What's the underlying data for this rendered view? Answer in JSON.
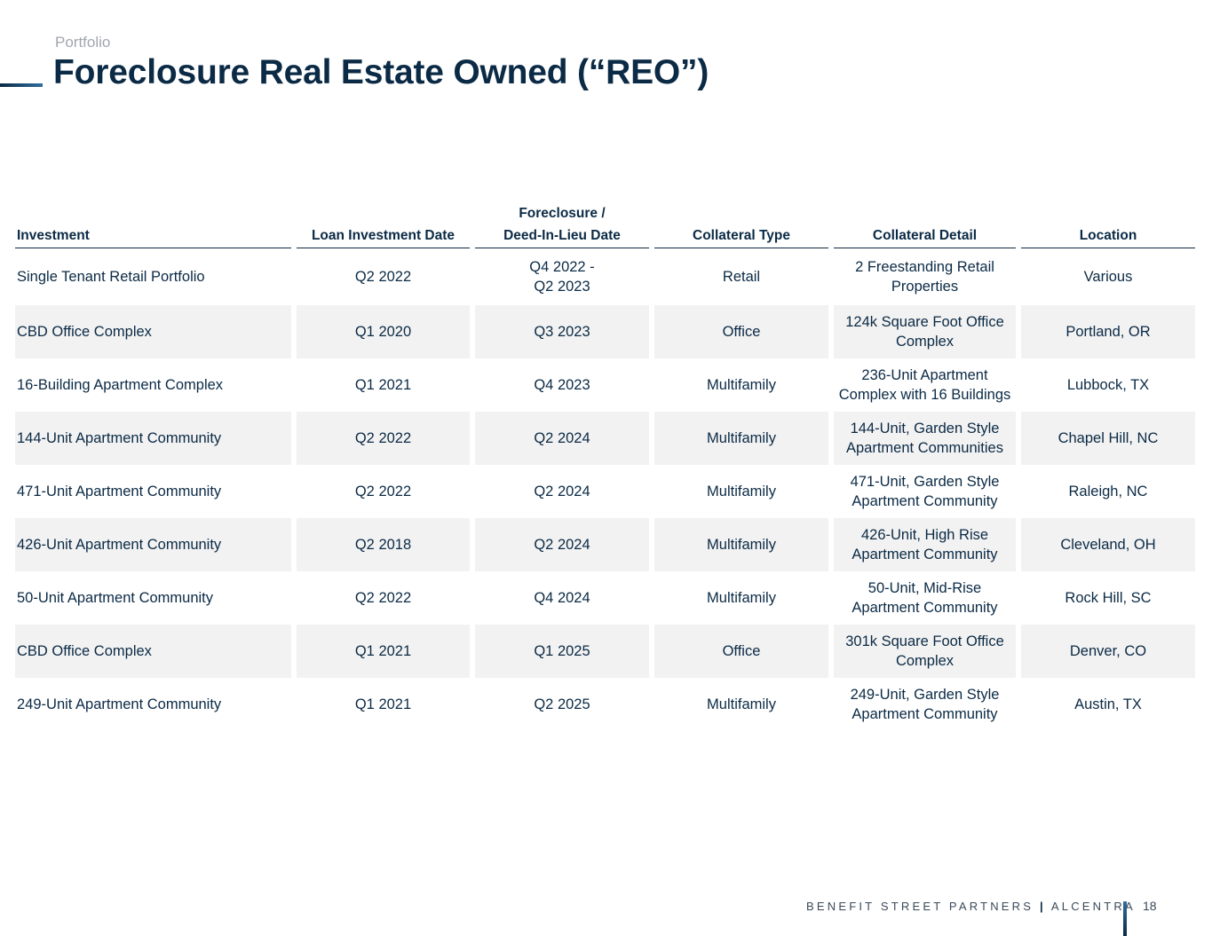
{
  "header": {
    "kicker": "Portfolio",
    "title": "Foreclosure Real Estate Owned (“REO”)"
  },
  "table": {
    "columns": [
      {
        "label": "Investment",
        "align": "left"
      },
      {
        "label": "Loan Investment Date",
        "align": "center"
      },
      {
        "label_line1": "Foreclosure /",
        "label_line2": "Deed-In-Lieu Date",
        "align": "center"
      },
      {
        "label": "Collateral Type",
        "align": "center"
      },
      {
        "label": "Collateral Detail",
        "align": "center"
      },
      {
        "label": "Location",
        "align": "center"
      }
    ],
    "rows": [
      {
        "investment": "Single Tenant Retail Portfolio",
        "loan_date": "Q2 2022",
        "foreclosure_line1": "Q4 2022 -",
        "foreclosure_line2": "Q2 2023",
        "collateral_type": "Retail",
        "detail_line1": "2 Freestanding Retail",
        "detail_line2": "Properties",
        "location": "Various"
      },
      {
        "investment": "CBD Office Complex",
        "loan_date": "Q1 2020",
        "foreclosure_line1": "Q3 2023",
        "foreclosure_line2": "",
        "collateral_type": "Office",
        "detail_line1": "124k Square Foot Office",
        "detail_line2": "Complex",
        "location": "Portland, OR"
      },
      {
        "investment": "16-Building Apartment Complex",
        "loan_date": "Q1 2021",
        "foreclosure_line1": "Q4 2023",
        "foreclosure_line2": "",
        "collateral_type": "Multifamily",
        "detail_line1": "236-Unit Apartment",
        "detail_line2": "Complex with 16 Buildings",
        "location": "Lubbock, TX"
      },
      {
        "investment": "144-Unit Apartment Community",
        "loan_date": "Q2 2022",
        "foreclosure_line1": "Q2 2024",
        "foreclosure_line2": "",
        "collateral_type": "Multifamily",
        "detail_line1": "144-Unit, Garden Style",
        "detail_line2": "Apartment Communities",
        "location": "Chapel Hill, NC"
      },
      {
        "investment": "471-Unit Apartment Community",
        "loan_date": "Q2 2022",
        "foreclosure_line1": "Q2 2024",
        "foreclosure_line2": "",
        "collateral_type": "Multifamily",
        "detail_line1": "471-Unit, Garden Style",
        "detail_line2": "Apartment Community",
        "location": "Raleigh, NC"
      },
      {
        "investment": "426-Unit Apartment Community",
        "loan_date": "Q2 2018",
        "foreclosure_line1": "Q2 2024",
        "foreclosure_line2": "",
        "collateral_type": "Multifamily",
        "detail_line1": "426-Unit, High Rise",
        "detail_line2": "Apartment Community",
        "location": "Cleveland, OH"
      },
      {
        "investment": "50-Unit Apartment Community",
        "loan_date": "Q2 2022",
        "foreclosure_line1": "Q4 2024",
        "foreclosure_line2": "",
        "collateral_type": "Multifamily",
        "detail_line1": "50-Unit, Mid-Rise",
        "detail_line2": "Apartment Community",
        "location": "Rock Hill, SC"
      },
      {
        "investment": "CBD Office Complex",
        "loan_date": "Q1 2021",
        "foreclosure_line1": "Q1 2025",
        "foreclosure_line2": "",
        "collateral_type": "Office",
        "detail_line1": "301k Square Foot Office",
        "detail_line2": "Complex",
        "location": "Denver, CO"
      },
      {
        "investment": "249-Unit Apartment Community",
        "loan_date": "Q1 2021",
        "foreclosure_line1": "Q2 2025",
        "foreclosure_line2": "",
        "collateral_type": "Multifamily",
        "detail_line1": "249-Unit, Garden Style",
        "detail_line2": "Apartment Community",
        "location": "Austin, TX"
      }
    ]
  },
  "footer": {
    "brand_left": "BENEFIT STREET PARTNERS",
    "brand_sep": "|",
    "brand_right": "ALCENTRA",
    "page_number": "18"
  },
  "colors": {
    "navy": "#0b2a45",
    "row_alt": "#f2f2f2",
    "kicker_gray": "#a0a6ad",
    "accent_blue": "#2f6f9e"
  }
}
